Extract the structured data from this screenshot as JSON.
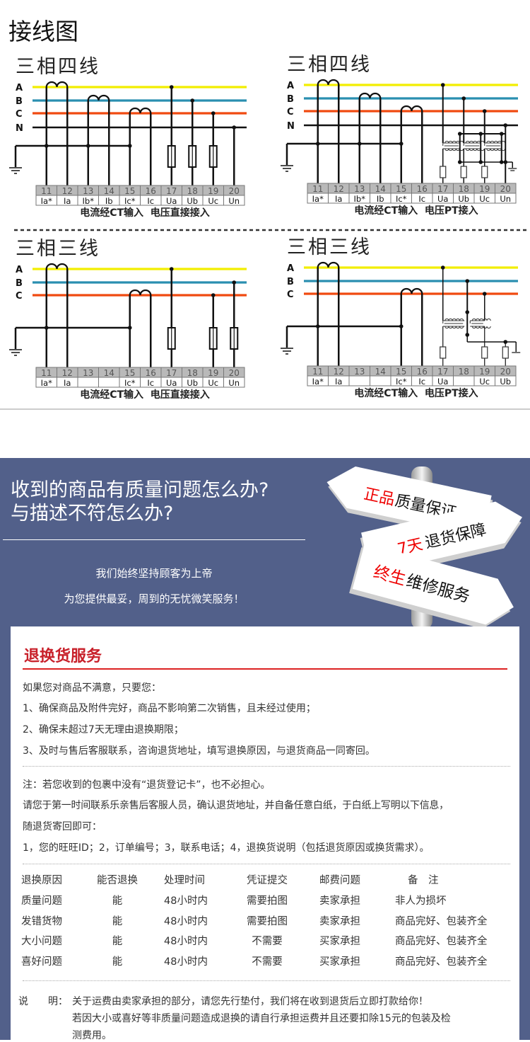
{
  "page_title": "接线图",
  "colors": {
    "phase_a": "#f2ee00",
    "phase_b": "#2a8fb0",
    "phase_c": "#f04a10",
    "neutral": "#111111",
    "banner_bg": "#52608a",
    "accent_red": "#c8202a"
  },
  "diagrams": [
    {
      "title": "三相四线",
      "phases": [
        "A",
        "B",
        "C",
        "N"
      ],
      "terminals": [
        "11",
        "12",
        "13",
        "14",
        "15",
        "16",
        "17",
        "18",
        "19",
        "20"
      ],
      "labels": [
        "Ia*",
        "Ia",
        "Ib*",
        "Ib",
        "Ic*",
        "Ic",
        "Ua",
        "Ub",
        "Uc",
        "Un"
      ],
      "caption": "电流经CT输入  电压直接接入"
    },
    {
      "title": "三相四线",
      "phases": [
        "A",
        "B",
        "C",
        "N"
      ],
      "terminals": [
        "11",
        "12",
        "13",
        "14",
        "15",
        "16",
        "17",
        "18",
        "19",
        "20"
      ],
      "labels": [
        "Ia*",
        "Ia",
        "Ib*",
        "Ib",
        "Ic*",
        "Ic",
        "Ua",
        "Ub",
        "Uc",
        "Un"
      ],
      "caption": "电流经CT输入  电压PT接入"
    },
    {
      "title": "三相三线",
      "phases": [
        "A",
        "B",
        "C"
      ],
      "terminals": [
        "11",
        "12",
        "13",
        "14",
        "15",
        "16",
        "17",
        "18",
        "19",
        "20"
      ],
      "labels": [
        "Ia*",
        "Ia",
        "",
        "",
        "Ic*",
        "Ic",
        "Ua",
        "Ub",
        "Uc",
        "Un"
      ],
      "caption": "电流经CT输入  电压直接接入"
    },
    {
      "title": "三相三线",
      "phases": [
        "A",
        "B",
        "C"
      ],
      "terminals": [
        "11",
        "12",
        "13",
        "14",
        "15",
        "16",
        "17",
        "18",
        "19",
        "20"
      ],
      "labels": [
        "Ia*",
        "Ia",
        "",
        "",
        "Ic*",
        "Ic",
        "Ua",
        "",
        "Uc",
        "Ub"
      ],
      "caption": "电流经CT输入  电压PT接入"
    }
  ],
  "banner": {
    "headline": [
      "收到的商品有质量问题怎么办?",
      "与描述不符怎么办?"
    ],
    "tagline": [
      "我们始终坚持顾客为上帝",
      "为您提供最妥，周到的无忧微笑服务！"
    ],
    "signs": [
      {
        "red": "正品",
        "black": "质量保证"
      },
      {
        "red": "7天",
        "black": "退货保障"
      },
      {
        "red": "终生",
        "black": "维修服务"
      }
    ]
  },
  "service": {
    "title": "退换货服务",
    "intro": "如果您对商品不满意，只要您：",
    "conditions": [
      "1、确保商品及附件完好，商品不影响第二次销售，且未经过使用；",
      "2、确保未超过7天无理由退换期限；",
      "3、及时与售后客服联系，咨询退货地址，填写退换原因，与退货商品一同寄回。"
    ],
    "note": [
      "注：若您收到的包裹中没有“退货登记卡”，也不必担心。",
      "请您于第一时间联系乐亲售后客服人员，确认退货地址，并自备任意白纸，于白纸上写明以下信息，",
      "随退货寄回即可：",
      "1，您的旺旺ID；2，订单编号；3，联系电话；4，退换货说明（包括退货原因或换货需求）。"
    ],
    "table": {
      "headers": [
        "退换原因",
        "能否退换",
        "处理时间",
        "凭证提交",
        "邮费问题",
        "备　注"
      ],
      "rows": [
        [
          "质量问题",
          "能",
          "48小时内",
          "需要拍图",
          "卖家承担",
          "非人为损坏"
        ],
        [
          "发错货物",
          "能",
          "48小时内",
          "需要拍图",
          "卖家承担",
          "商品完好、包装齐全"
        ],
        [
          "大小问题",
          "能",
          "48小时内",
          "不需要",
          "买家承担",
          "商品完好、包装齐全"
        ],
        [
          "喜好问题",
          "能",
          "48小时内",
          "不需要",
          "买家承担",
          "商品完好、包装齐全"
        ]
      ]
    },
    "explain_label": "说　　明：",
    "explain": [
      "关于运费由卖家承担的部分，请您先行垫付，我们将在收到退货后立即打款给你！",
      "若因大小或喜好等非质量问题造成退换的请自行承担运费并且还要扣除15元的包装及检",
      "测费用。"
    ]
  }
}
